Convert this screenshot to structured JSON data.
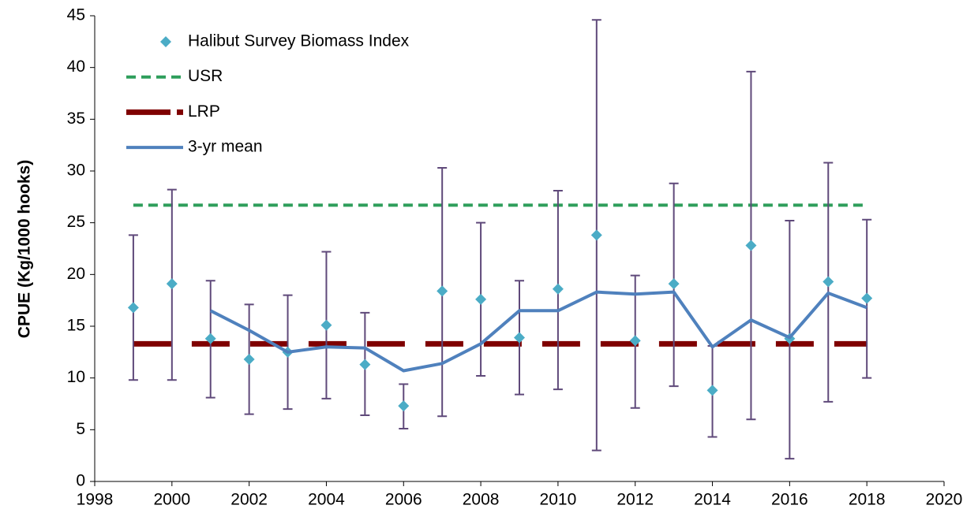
{
  "chart_data": {
    "type": "errorbar-line",
    "y_label": "CPUE (Kg/1000 hooks)",
    "xlim": [
      1998,
      2020
    ],
    "xticks": [
      1998,
      2000,
      2002,
      2004,
      2006,
      2008,
      2010,
      2012,
      2014,
      2016,
      2018,
      2020
    ],
    "ylim": [
      0,
      45
    ],
    "yticks": [
      0,
      5,
      10,
      15,
      20,
      25,
      30,
      35,
      40,
      45
    ],
    "legend": "upper left",
    "x": [
      1999,
      2000,
      2001,
      2002,
      2003,
      2004,
      2005,
      2006,
      2007,
      2008,
      2009,
      2010,
      2011,
      2012,
      2013,
      2014,
      2015,
      2016,
      2017,
      2018
    ],
    "series": [
      {
        "name": "Halibut Survey Biomass Index",
        "kind": "points",
        "color": "#4bacc6",
        "error_color": "#5f497a",
        "values": [
          16.8,
          19.1,
          13.8,
          11.8,
          12.5,
          15.1,
          11.3,
          7.3,
          18.4,
          17.6,
          13.9,
          18.6,
          23.8,
          13.6,
          19.1,
          8.8,
          22.8,
          13.8,
          19.3,
          17.7
        ],
        "lower": [
          9.8,
          9.8,
          8.1,
          6.5,
          7.0,
          8.0,
          6.4,
          5.1,
          6.3,
          10.2,
          8.4,
          8.9,
          3.0,
          7.1,
          9.2,
          4.3,
          6.0,
          2.2,
          7.7,
          10.0
        ],
        "upper": [
          23.8,
          28.2,
          19.4,
          17.1,
          18.0,
          22.2,
          16.3,
          9.4,
          30.3,
          25.0,
          19.4,
          28.1,
          44.6,
          19.9,
          28.8,
          13.1,
          39.6,
          25.2,
          30.8,
          25.3
        ]
      },
      {
        "name": "USR",
        "kind": "reference",
        "color": "#2e9e5b",
        "x": [
          1999,
          2018
        ],
        "values": [
          26.7,
          26.7
        ]
      },
      {
        "name": "LRP",
        "kind": "reference-thick",
        "color": "#7f0000",
        "x": [
          1999,
          2018
        ],
        "values": [
          13.3,
          13.3
        ]
      },
      {
        "name": "3-yr mean",
        "kind": "line",
        "color": "#4f81bd",
        "values": [
          null,
          null,
          16.5,
          14.6,
          12.5,
          13.0,
          12.9,
          10.7,
          11.4,
          13.3,
          16.5,
          16.5,
          18.3,
          18.1,
          18.3,
          13.0,
          15.6,
          13.9,
          18.2,
          16.8
        ]
      }
    ]
  }
}
